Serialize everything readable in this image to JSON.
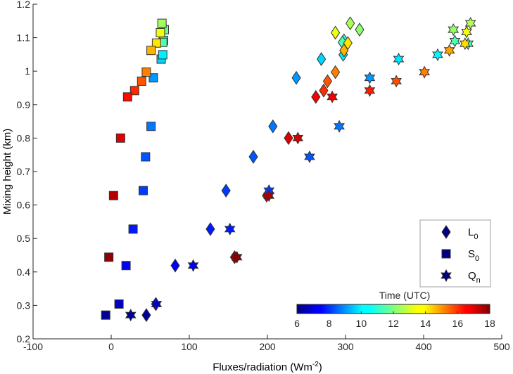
{
  "chart_data": {
    "type": "scatter",
    "title": "",
    "xlabel": "Fluxes/radiation (Wm",
    "xlabel_sup": "-2",
    "xlabel_close": ")",
    "ylabel": "Mixing height (km)",
    "xlim": [
      -100,
      500
    ],
    "ylim": [
      0.2,
      1.2
    ],
    "grid": false,
    "xticks": [
      -100,
      0,
      100,
      200,
      300,
      400,
      500
    ],
    "xtick_labels": [
      "-100",
      "0",
      "100",
      "200",
      "300",
      "400",
      "500"
    ],
    "yticks": [
      0.2,
      0.3,
      0.4,
      0.5,
      0.6,
      0.7,
      0.8,
      0.9,
      1.0,
      1.1,
      1.2
    ],
    "ytick_labels": [
      "0.2",
      "0.3",
      "0.4",
      "0.5",
      "0.6",
      "0.7",
      "0.8",
      "0.9",
      "1",
      "1.1",
      "1.2"
    ],
    "legend_position": "bottom-right",
    "legend": [
      {
        "marker": "diamond",
        "label": "L",
        "sub": "0",
        "color": "#00007f"
      },
      {
        "marker": "square",
        "label": "S",
        "sub": "0",
        "color": "#00007f"
      },
      {
        "marker": "star",
        "label": "Q",
        "sub": "n",
        "color": "#00007f"
      }
    ],
    "colorbar": {
      "title": "Time (UTC)",
      "colormap": "jet",
      "range": [
        6,
        18
      ],
      "ticks": [
        6,
        8,
        10,
        12,
        14,
        16,
        18
      ],
      "tick_labels": [
        "6",
        "8",
        "10",
        "12",
        "14",
        "16",
        "18"
      ],
      "position": "bottom-right, horizontal"
    },
    "series": [
      {
        "name": "S0",
        "marker": "square",
        "points": [
          {
            "x": -7,
            "y": 0.271,
            "t": 6.3
          },
          {
            "x": 10,
            "y": 0.304,
            "t": 6.8
          },
          {
            "x": 19,
            "y": 0.419,
            "t": 7.4
          },
          {
            "x": 28,
            "y": 0.528,
            "t": 7.8
          },
          {
            "x": 41,
            "y": 0.643,
            "t": 8.2
          },
          {
            "x": 44,
            "y": 0.744,
            "t": 8.5
          },
          {
            "x": 51,
            "y": 0.835,
            "t": 8.9
          },
          {
            "x": 54,
            "y": 0.98,
            "t": 9.3
          },
          {
            "x": 64,
            "y": 1.036,
            "t": 10.0
          },
          {
            "x": 66,
            "y": 1.049,
            "t": 10.3
          },
          {
            "x": 67,
            "y": 1.092,
            "t": 11.0
          },
          {
            "x": 66,
            "y": 1.086,
            "t": 11.4
          },
          {
            "x": 68,
            "y": 1.124,
            "t": 11.8
          },
          {
            "x": 65,
            "y": 1.143,
            "t": 12.4
          },
          {
            "x": 63,
            "y": 1.115,
            "t": 13.3
          },
          {
            "x": 58,
            "y": 1.084,
            "t": 13.8
          },
          {
            "x": 51,
            "y": 1.062,
            "t": 14.4
          },
          {
            "x": 45,
            "y": 0.997,
            "t": 15.0
          },
          {
            "x": 39,
            "y": 0.97,
            "t": 15.5
          },
          {
            "x": 30,
            "y": 0.942,
            "t": 16.0
          },
          {
            "x": 21,
            "y": 0.923,
            "t": 16.4
          },
          {
            "x": 12,
            "y": 0.8,
            "t": 16.9
          },
          {
            "x": 3,
            "y": 0.628,
            "t": 17.4
          },
          {
            "x": -3,
            "y": 0.444,
            "t": 17.8
          }
        ]
      },
      {
        "name": "L0",
        "marker": "diamond",
        "points": [
          {
            "x": 45,
            "y": 0.271,
            "t": 6.3
          },
          {
            "x": 57,
            "y": 0.304,
            "t": 6.8
          },
          {
            "x": 82,
            "y": 0.419,
            "t": 7.4
          },
          {
            "x": 127,
            "y": 0.528,
            "t": 7.8
          },
          {
            "x": 147,
            "y": 0.643,
            "t": 8.2
          },
          {
            "x": 182,
            "y": 0.744,
            "t": 8.5
          },
          {
            "x": 207,
            "y": 0.835,
            "t": 8.9
          },
          {
            "x": 237,
            "y": 0.98,
            "t": 9.3
          },
          {
            "x": 269,
            "y": 1.036,
            "t": 10.0
          },
          {
            "x": 297,
            "y": 1.049,
            "t": 10.3
          },
          {
            "x": 298,
            "y": 1.092,
            "t": 11.0
          },
          {
            "x": 296,
            "y": 1.086,
            "t": 11.4
          },
          {
            "x": 318,
            "y": 1.124,
            "t": 12.2
          },
          {
            "x": 306,
            "y": 1.143,
            "t": 12.5
          },
          {
            "x": 287,
            "y": 1.115,
            "t": 13.3
          },
          {
            "x": 303,
            "y": 1.084,
            "t": 13.8
          },
          {
            "x": 298,
            "y": 1.062,
            "t": 14.4
          },
          {
            "x": 287,
            "y": 0.997,
            "t": 15.0
          },
          {
            "x": 277,
            "y": 0.97,
            "t": 15.5
          },
          {
            "x": 272,
            "y": 0.942,
            "t": 16.0
          },
          {
            "x": 262,
            "y": 0.923,
            "t": 16.6
          },
          {
            "x": 227,
            "y": 0.8,
            "t": 16.9
          },
          {
            "x": 199,
            "y": 0.628,
            "t": 17.4
          },
          {
            "x": 158,
            "y": 0.444,
            "t": 17.8
          }
        ]
      },
      {
        "name": "Qn",
        "marker": "star",
        "points": [
          {
            "x": 25,
            "y": 0.271,
            "t": 6.3
          },
          {
            "x": 58,
            "y": 0.304,
            "t": 6.8
          },
          {
            "x": 105,
            "y": 0.419,
            "t": 7.4
          },
          {
            "x": 152,
            "y": 0.528,
            "t": 7.8
          },
          {
            "x": 202,
            "y": 0.643,
            "t": 8.2
          },
          {
            "x": 254,
            "y": 0.744,
            "t": 8.5
          },
          {
            "x": 292,
            "y": 0.835,
            "t": 8.9
          },
          {
            "x": 331,
            "y": 0.98,
            "t": 9.3
          },
          {
            "x": 368,
            "y": 1.036,
            "t": 10.2
          },
          {
            "x": 418,
            "y": 1.049,
            "t": 10.4
          },
          {
            "x": 457,
            "y": 1.082,
            "t": 11.2
          },
          {
            "x": 440,
            "y": 1.09,
            "t": 11.4
          },
          {
            "x": 438,
            "y": 1.124,
            "t": 12.3
          },
          {
            "x": 460,
            "y": 1.143,
            "t": 12.6
          },
          {
            "x": 455,
            "y": 1.117,
            "t": 13.4
          },
          {
            "x": 453,
            "y": 1.082,
            "t": 13.9
          },
          {
            "x": 433,
            "y": 1.062,
            "t": 14.6
          },
          {
            "x": 401,
            "y": 0.997,
            "t": 15.0
          },
          {
            "x": 365,
            "y": 0.97,
            "t": 15.6
          },
          {
            "x": 331,
            "y": 0.942,
            "t": 16.2
          },
          {
            "x": 283,
            "y": 0.923,
            "t": 16.7
          },
          {
            "x": 239,
            "y": 0.8,
            "t": 17.0
          },
          {
            "x": 202,
            "y": 0.628,
            "t": 17.5
          },
          {
            "x": 161,
            "y": 0.444,
            "t": 17.9
          }
        ]
      }
    ]
  }
}
